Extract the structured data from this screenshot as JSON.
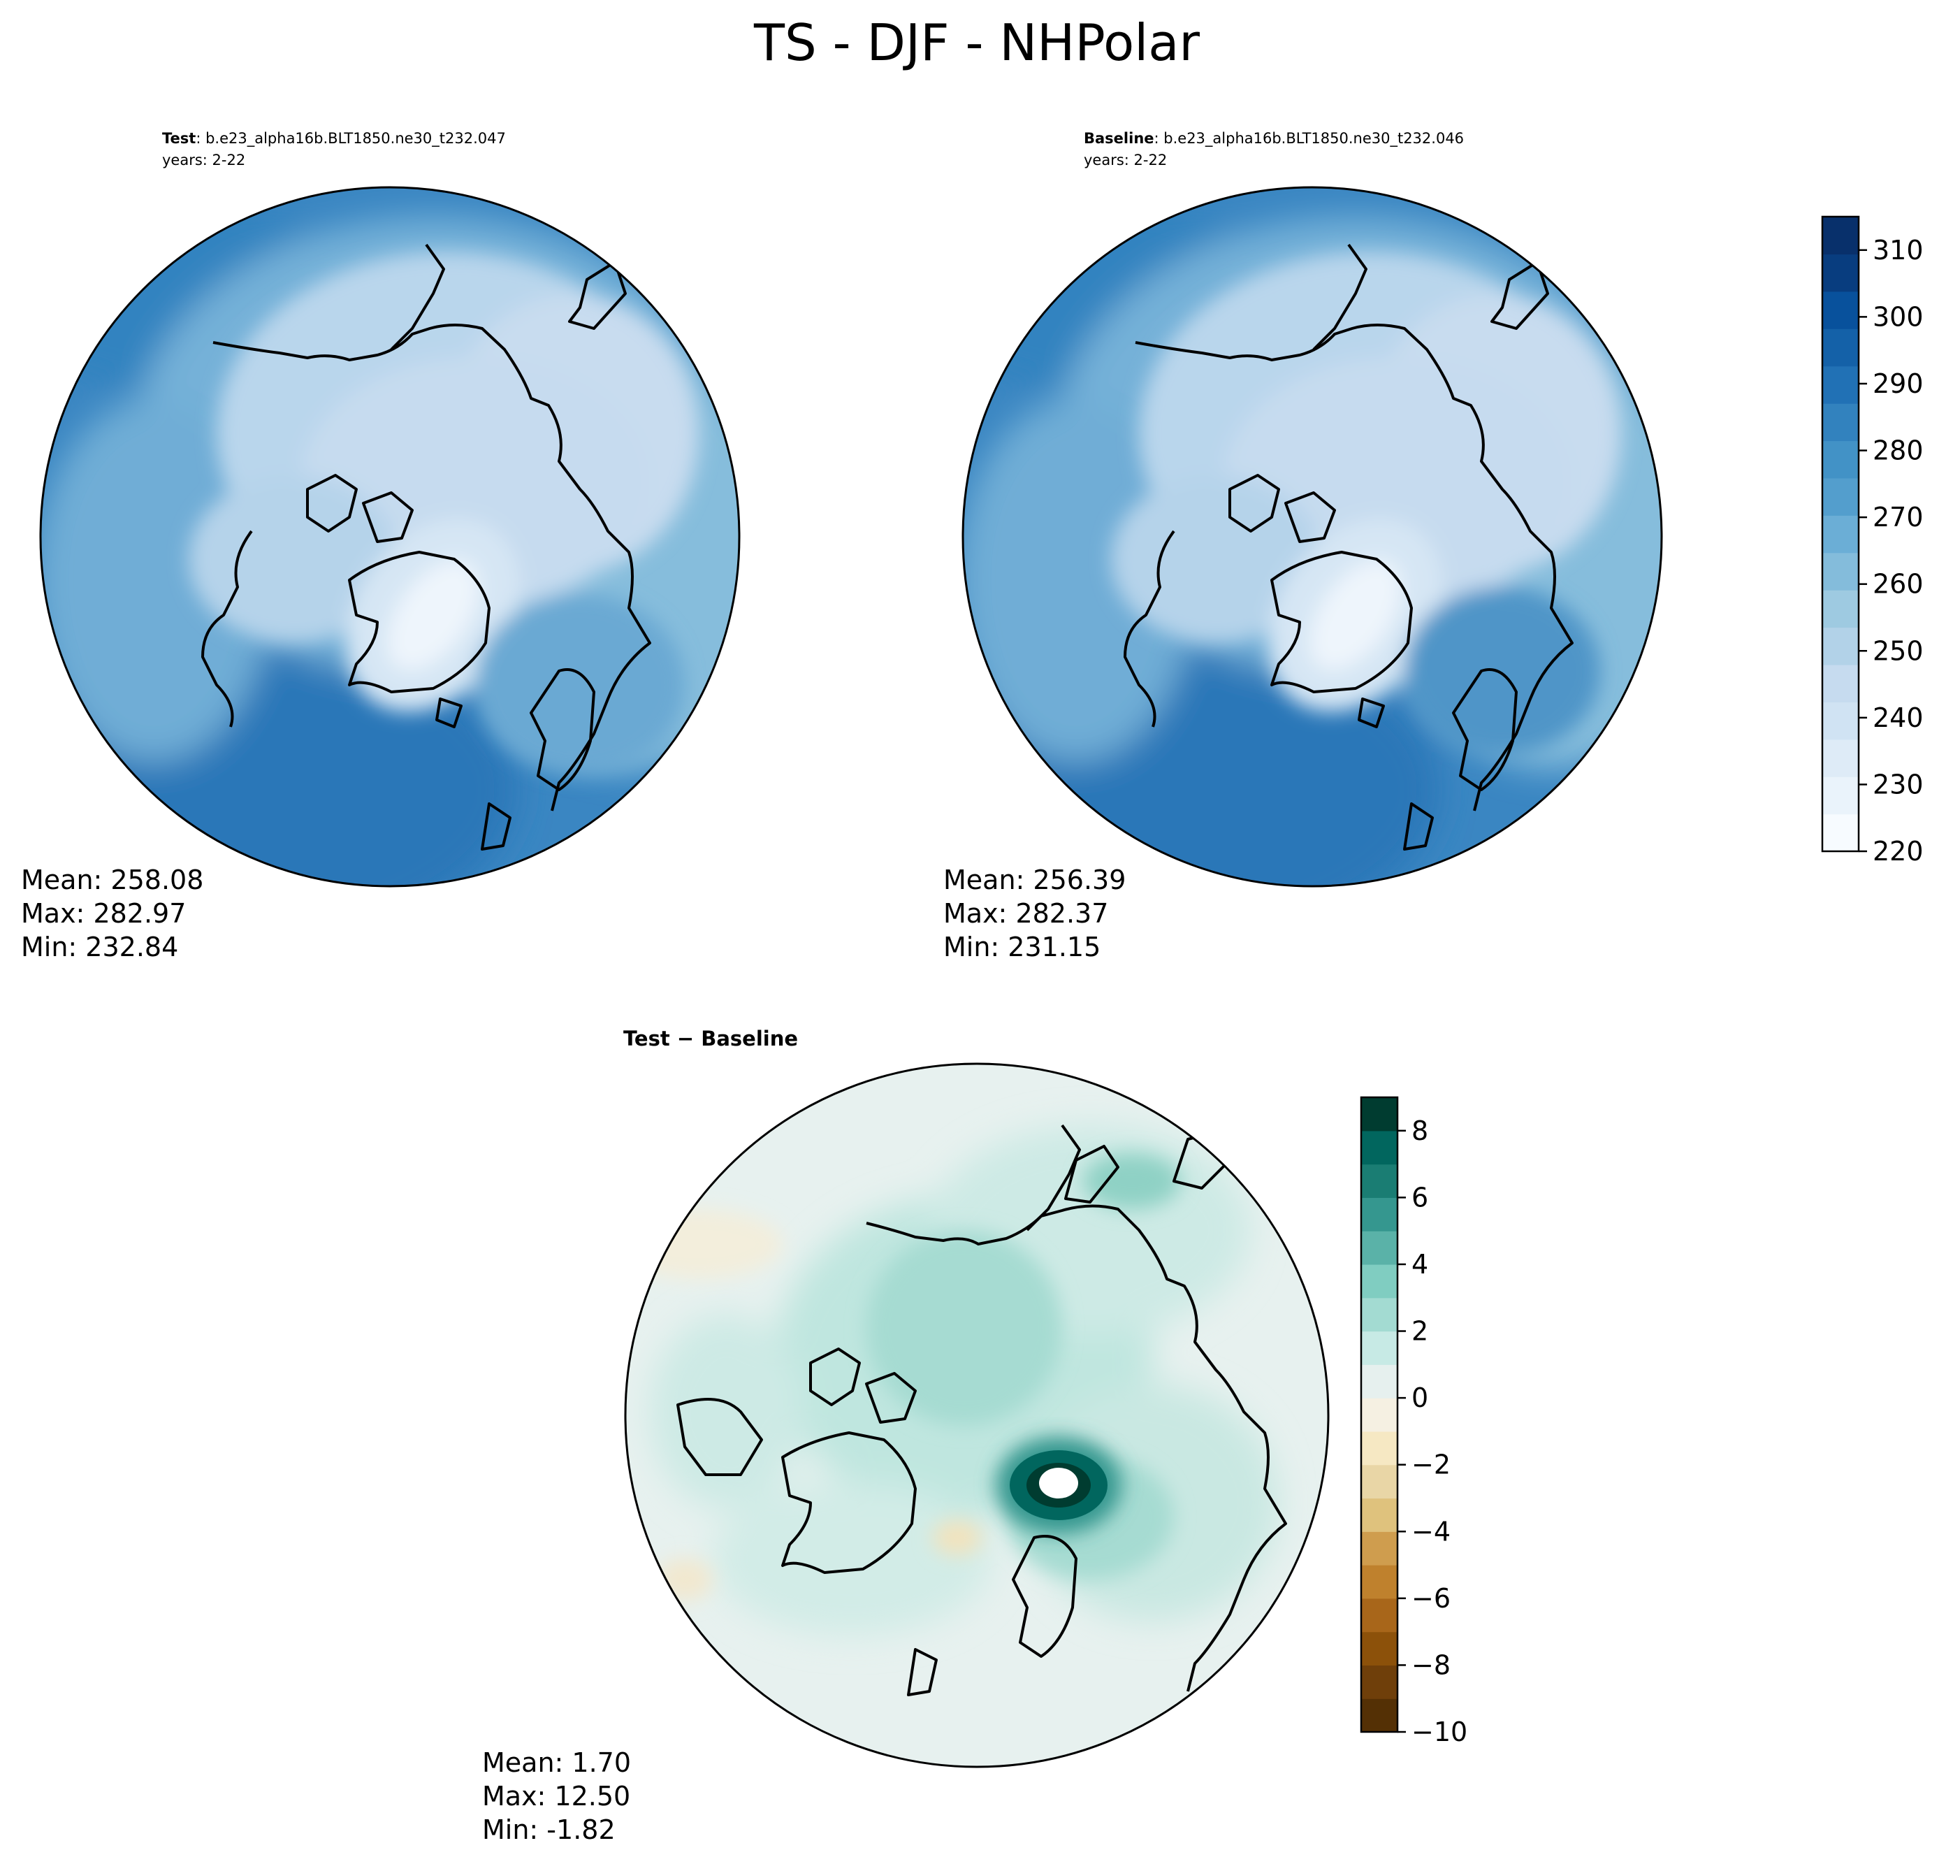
{
  "figure": {
    "title": "TS - DJF - NHPolar"
  },
  "panels": [
    {
      "id": "test",
      "label_bold": "Test",
      "case": ": b.e23_alpha16b.BLT1850.ne30_t232.047",
      "years": "years: 2-22",
      "stats": {
        "mean": "Mean: 258.08",
        "max": "Max: 282.97",
        "min": "Min: 232.84"
      }
    },
    {
      "id": "baseline",
      "label_bold": "Baseline",
      "case": ": b.e23_alpha16b.BLT1850.ne30_t232.046",
      "years": "years: 2-22",
      "stats": {
        "mean": "Mean: 256.39",
        "max": "Max: 282.37",
        "min": "Min: 231.15"
      }
    },
    {
      "id": "diff",
      "title": "Test − Baseline",
      "stats": {
        "mean": "Mean:  1.70",
        "max": "Max: 12.50",
        "min": "Min: -1.82"
      }
    }
  ],
  "colorbars": {
    "absolute": {
      "range": [
        220,
        315
      ],
      "ticks": [
        220,
        230,
        240,
        250,
        260,
        270,
        280,
        290,
        300,
        310
      ],
      "tick_labels": [
        "220",
        "230",
        "240",
        "250",
        "260",
        "270",
        "280",
        "290",
        "300",
        "310"
      ],
      "colors": [
        "#f7fbff",
        "#eaf3fb",
        "#deebf7",
        "#d0e3f3",
        "#c6dbef",
        "#b2d2e8",
        "#9ecae1",
        "#84bcdb",
        "#6baed6",
        "#539ecd",
        "#4292c6",
        "#3282be",
        "#2171b5",
        "#1461a8",
        "#08519c",
        "#083d7f",
        "#08306b"
      ]
    },
    "difference": {
      "range": [
        -10,
        9
      ],
      "ticks": [
        -10,
        -8,
        -6,
        -4,
        -2,
        0,
        2,
        4,
        6,
        8
      ],
      "tick_labels": [
        "−10",
        "−8",
        "−6",
        "−4",
        "−2",
        "0",
        "2",
        "4",
        "6",
        "8"
      ],
      "colors": [
        "#543005",
        "#6f3f0a",
        "#8c510a",
        "#a8661a",
        "#bf812d",
        "#cf9d4e",
        "#dfc27d",
        "#e9d6a6",
        "#f6e8c3",
        "#f5f0e2",
        "#e6f0ee",
        "#c7eae5",
        "#a3dbd2",
        "#80cdc1",
        "#5ab2a8",
        "#35978f",
        "#1a7d73",
        "#01665e",
        "#003c30"
      ]
    }
  }
}
